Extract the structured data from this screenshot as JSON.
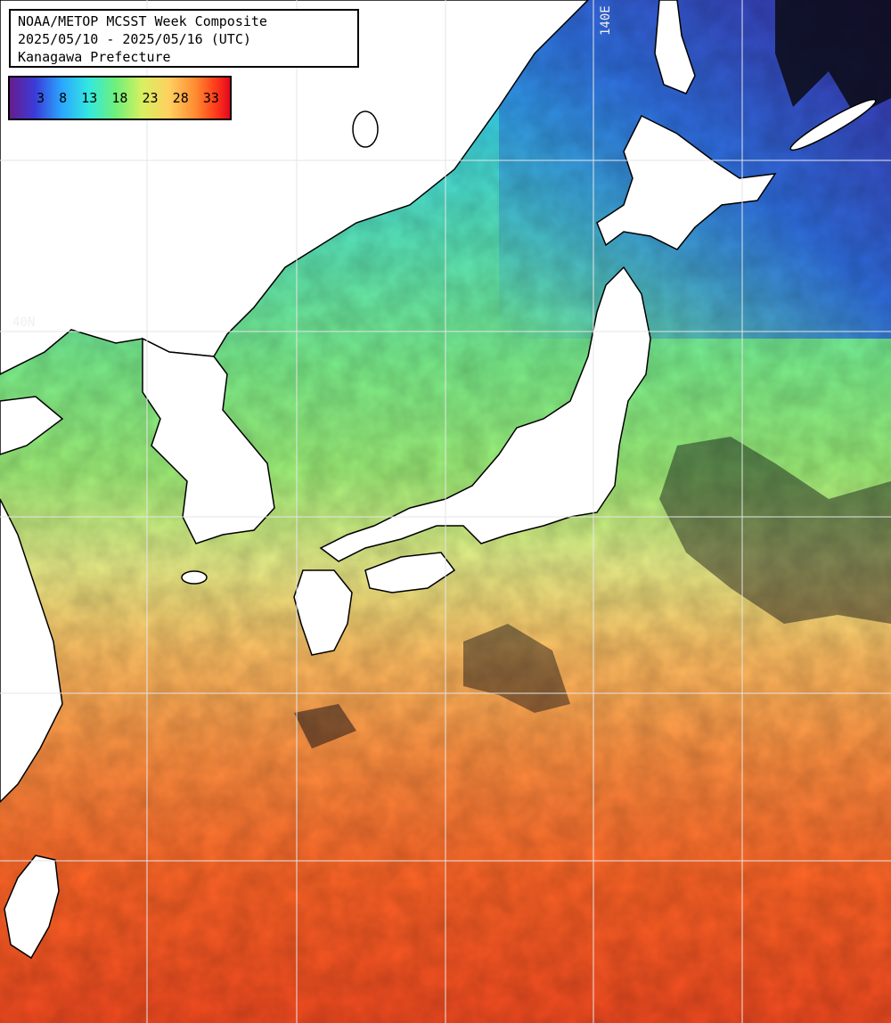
{
  "header": {
    "title_line1": "NOAA/METOP MCSST Week Composite",
    "title_line2": "2025/05/10 - 2025/05/16 (UTC)",
    "title_line3": "Kanagawa Prefecture"
  },
  "colorbar": {
    "ticks": [
      "3",
      "8",
      "13",
      "18",
      "23",
      "28",
      "33"
    ],
    "gradient": [
      "#6a1a8a",
      "#3b3bd8",
      "#2aa6ff",
      "#33e8e0",
      "#6df07a",
      "#d8f060",
      "#ffd060",
      "#ff8a30",
      "#ff3a1a",
      "#e00020"
    ]
  },
  "grid_labels": {
    "lon_label": "140E",
    "lat_label": "40N"
  },
  "colors": {
    "land": "#ffffff",
    "coastline": "#000000",
    "gridline": "#e6e6e6",
    "cloud": "#0a0a14"
  }
}
